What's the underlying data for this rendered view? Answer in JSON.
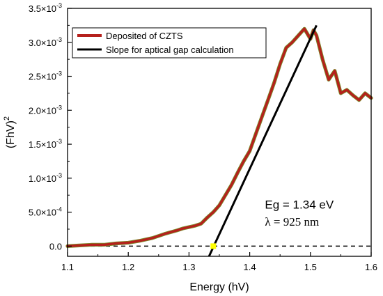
{
  "chart_data": {
    "type": "line",
    "title": "",
    "xlabel": "Energy (hV)",
    "ylabel": "(FhV)",
    "ylabel_superscript": "2",
    "xlim": [
      1.1,
      1.6
    ],
    "ylim": [
      -0.00015,
      0.0035
    ],
    "x_ticks": [
      1.1,
      1.2,
      1.3,
      1.4,
      1.5,
      1.6
    ],
    "x_tick_labels": [
      "1.1",
      "1.2",
      "1.3",
      "1.4",
      "1.5",
      "1.6"
    ],
    "y_ticks": [
      0,
      0.0005,
      0.001,
      0.0015,
      0.002,
      0.0025,
      0.003,
      0.0035
    ],
    "y_tick_labels": [
      {
        "mantissa": "0.0",
        "exponent": ""
      },
      {
        "mantissa": "5.0×10",
        "exponent": "-4"
      },
      {
        "mantissa": "1.0×10",
        "exponent": "-3"
      },
      {
        "mantissa": "1.5×10",
        "exponent": "-3"
      },
      {
        "mantissa": "2.0×10",
        "exponent": "-3"
      },
      {
        "mantissa": "2.5×10",
        "exponent": "-3"
      },
      {
        "mantissa": "3.0×10",
        "exponent": "-3"
      },
      {
        "mantissa": "3.5×10",
        "exponent": "-3"
      }
    ],
    "grid": false,
    "legend_position": "top-left",
    "series": [
      {
        "name": "Deposited of CZTS",
        "color": "#b5201c",
        "outline_color": "#7a8a2a",
        "x": [
          1.1,
          1.12,
          1.14,
          1.16,
          1.18,
          1.2,
          1.22,
          1.24,
          1.26,
          1.28,
          1.29,
          1.3,
          1.31,
          1.32,
          1.33,
          1.34,
          1.35,
          1.36,
          1.37,
          1.38,
          1.39,
          1.4,
          1.41,
          1.42,
          1.43,
          1.44,
          1.45,
          1.46,
          1.47,
          1.48,
          1.49,
          1.5,
          1.505,
          1.51,
          1.52,
          1.53,
          1.54,
          1.55,
          1.56,
          1.57,
          1.58,
          1.59,
          1.6
        ],
        "y": [
          0.0,
          1e-05,
          2e-05,
          2e-05,
          4e-05,
          5e-05,
          8e-05,
          0.00012,
          0.00018,
          0.00023,
          0.00026,
          0.00028,
          0.0003,
          0.00033,
          0.00042,
          0.0005,
          0.0006,
          0.00075,
          0.0009,
          0.00108,
          0.00125,
          0.0014,
          0.00165,
          0.0019,
          0.00215,
          0.0024,
          0.00268,
          0.00292,
          0.003,
          0.0031,
          0.0032,
          0.00305,
          0.00318,
          0.0031,
          0.00275,
          0.00245,
          0.00258,
          0.00225,
          0.0023,
          0.00222,
          0.00215,
          0.00225,
          0.00218
        ]
      },
      {
        "name": "Slope for aptical gap calculation",
        "color": "#000000",
        "x": [
          1.333,
          1.51
        ],
        "y": [
          -0.00015,
          0.00325
        ]
      }
    ],
    "baseline": {
      "y": 0,
      "style": "dashed",
      "color": "#000000"
    },
    "intercept_marker": {
      "x": 1.34,
      "y": 0,
      "color": "#ffff00"
    },
    "annotations": [
      {
        "text": "Eg = 1.34 eV",
        "x": 1.425,
        "y": 0.00055
      },
      {
        "text": "λ = 925 nm",
        "x": 1.425,
        "y": 0.0003
      }
    ]
  }
}
